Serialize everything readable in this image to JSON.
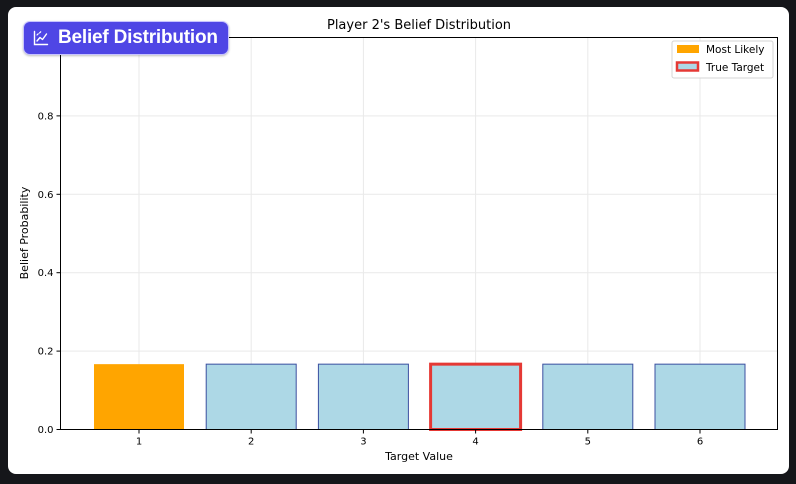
{
  "badge": {
    "icon": "chart-line-icon",
    "label": "Belief Distribution"
  },
  "chart_data": {
    "type": "bar",
    "title": "Player 2's Belief Distribution",
    "xlabel": "Target Value",
    "ylabel": "Belief Probability",
    "categories": [
      "1",
      "2",
      "3",
      "4",
      "5",
      "6"
    ],
    "values": [
      0.1667,
      0.1667,
      0.1667,
      0.1667,
      0.1667,
      0.1667
    ],
    "ylim": [
      0,
      1.0
    ],
    "yticks": [
      "0.0",
      "0.2",
      "0.4",
      "0.6",
      "0.8"
    ],
    "grid": true,
    "most_likely_index": 0,
    "true_target_index": 3,
    "colors": {
      "bar": "#add8e6",
      "bar_edge": "#3b4fa0",
      "most_likely": "#ffa500",
      "true_target_edge": "#e53935"
    },
    "legend": {
      "placement": "top-right",
      "entries": [
        {
          "label": "Most Likely",
          "kind": "most_likely"
        },
        {
          "label": "True Target",
          "kind": "true_target"
        }
      ]
    }
  }
}
